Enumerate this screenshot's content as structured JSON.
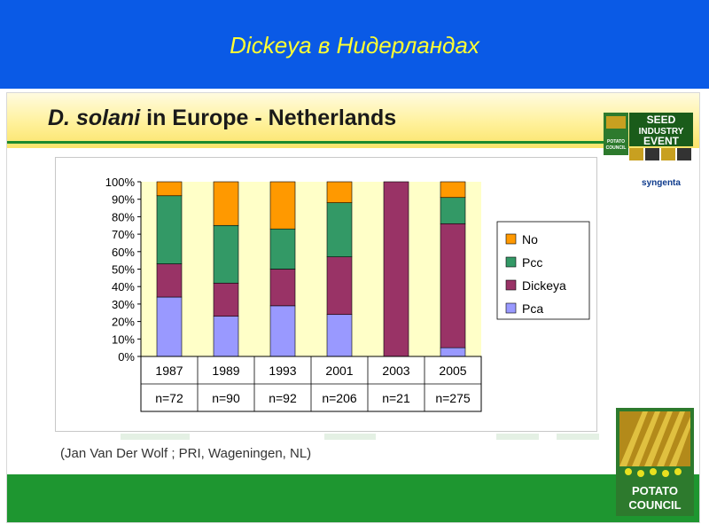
{
  "slide_title": "Dickeya в Нидерландах",
  "headline_italic": "D. solani",
  "headline_rest": " in Europe - Netherlands",
  "citation": "(Jan Van Der Wolf ; PRI, Wageningen, NL)",
  "logos": {
    "seed_event": [
      "SEED",
      "INDUSTRY",
      "EVENT"
    ],
    "sponsor": "syngenta",
    "potato_council": [
      "POTATO",
      "COUNCIL"
    ]
  },
  "colors": {
    "header_blue": "#0a5ae6",
    "title_yellow": "#ffff33",
    "footer_green": "#1e9630",
    "plot_bg": "#ffffc8"
  },
  "chart_data": {
    "type": "bar",
    "stacked": true,
    "categories": [
      "1987",
      "1989",
      "1993",
      "2001",
      "2003",
      "2005"
    ],
    "sample_sizes": [
      "n=72",
      "n=90",
      "n=92",
      "n=206",
      "n=21",
      "n=275"
    ],
    "series": [
      {
        "name": "Pca",
        "color": "#9999ff",
        "values": [
          34,
          23,
          29,
          24,
          0,
          5
        ]
      },
      {
        "name": "Dickeya",
        "color": "#993366",
        "values": [
          19,
          19,
          21,
          33,
          100,
          71
        ]
      },
      {
        "name": "Pcc",
        "color": "#339966",
        "values": [
          39,
          33,
          23,
          31,
          0,
          15
        ]
      },
      {
        "name": "No",
        "color": "#ff9900",
        "values": [
          8,
          25,
          27,
          12,
          0,
          9
        ]
      }
    ],
    "legend_order": [
      "No",
      "Pcc",
      "Dickeya",
      "Pca"
    ],
    "y_ticks": [
      "0%",
      "10%",
      "20%",
      "30%",
      "40%",
      "50%",
      "60%",
      "70%",
      "80%",
      "90%",
      "100%"
    ],
    "ylim": [
      0,
      100
    ],
    "legend_position": "right",
    "grid": false
  }
}
